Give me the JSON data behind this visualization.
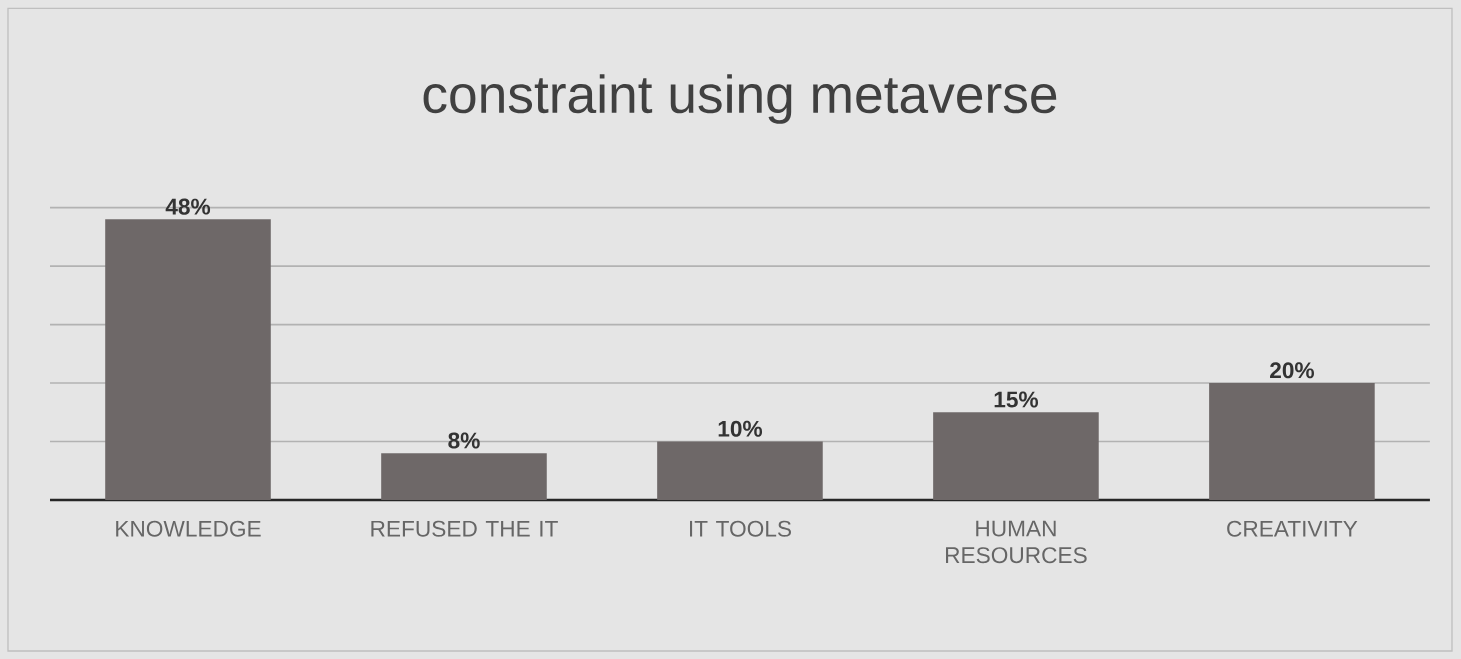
{
  "chart_data": {
    "type": "bar",
    "title": "constraint using metaverse",
    "categories": [
      "KNOWLEDGE",
      "REFUSED THE IT",
      "IT TOOLS",
      "HUMAN RESOURCES",
      "CREATIVITY"
    ],
    "values": [
      48,
      8,
      10,
      15,
      20
    ],
    "value_labels": [
      "48%",
      "8%",
      "10%",
      "15%",
      "20%"
    ],
    "color": "#6e6868",
    "grid": "y"
  }
}
